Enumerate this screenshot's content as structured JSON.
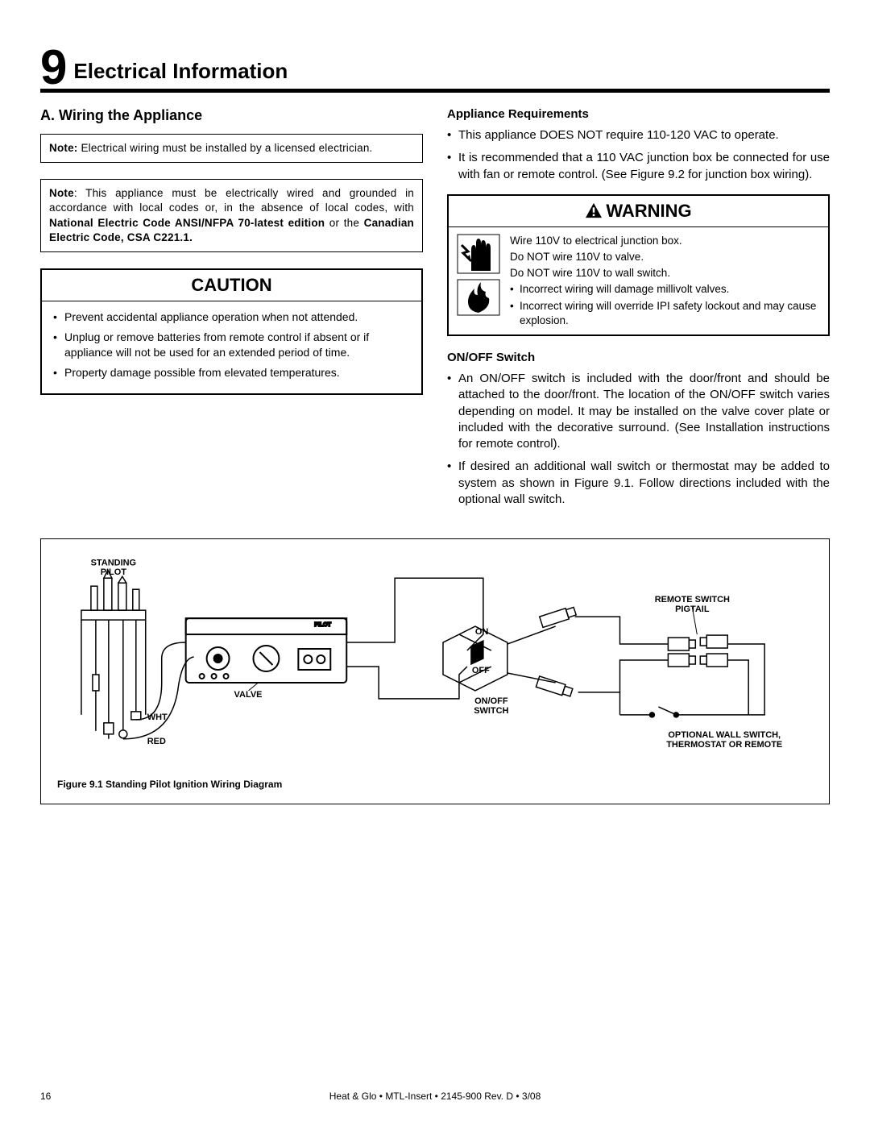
{
  "section": {
    "number": "9",
    "title": "Electrical Information"
  },
  "left": {
    "heading": "A.  Wiring the Appliance",
    "note1_prefix": "Note:",
    "note1_body": " Electrical wiring must be installed by a licensed electrician.",
    "note2_prefix": "Note",
    "note2_body1": ": This appliance must be electrically wired and grounded in accordance with local codes or, in the absence of local codes, with ",
    "note2_bold": "National Electric Code ANSI/NFPA 70-latest edition",
    "note2_body2": " or the ",
    "note2_bold2": "Canadian Electric Code, CSA C221.1.",
    "caution_title": "CAUTION",
    "caution_items": [
      "Prevent accidental appliance operation when not attended.",
      "Unplug or remove batteries from remote control if absent or if appliance will not be used for an extended period of time.",
      "Property damage possible from elevated temperatures."
    ]
  },
  "right": {
    "req_heading": "Appliance Requirements",
    "req_items": [
      "This appliance DOES NOT require 110-120 VAC to operate.",
      "It is recommended that a 110 VAC junction box be connected for use with fan or remote control. (See Figure 9.2 for junction box wiring)."
    ],
    "warning_title": "WARNING",
    "warning_lines": [
      "Wire 110V to electrical junction box.",
      "Do NOT wire 110V to valve.",
      "Do NOT wire 110V to wall switch."
    ],
    "warning_bullets": [
      "Incorrect wiring will damage millivolt valves.",
      "Incorrect wiring will override IPI safety lockout and may cause explosion."
    ],
    "onoff_heading": "ON/OFF Switch",
    "onoff_items": [
      "An ON/OFF switch is included with the door/front and should be attached to the door/front. The location of the ON/OFF switch varies depending on model.  It may be installed on the valve cover plate or included with the decorative surround. (See Installation instructions for remote control).",
      " If desired an additional wall switch or thermostat may be added to system as shown in Figure 9.1.  Follow directions included with the optional wall switch."
    ]
  },
  "diagram": {
    "caption": "Figure 9.1  Standing Pilot Ignition Wiring Diagram",
    "labels": {
      "standing_pilot": "STANDING PILOT",
      "valve": "VALVE",
      "wht": "WHT",
      "red": "RED",
      "on": "ON",
      "off": "OFF",
      "onoff_switch": "ON/OFF SWITCH",
      "remote_switch": "REMOTE SWITCH PIGTAIL",
      "optional": "OPTIONAL WALL SWITCH, THERMOSTAT OR REMOTE"
    }
  },
  "footer": {
    "page": "16",
    "center": "Heat & Glo  •  MTL-Insert  •  2145-900 Rev. D  •  3/08"
  }
}
